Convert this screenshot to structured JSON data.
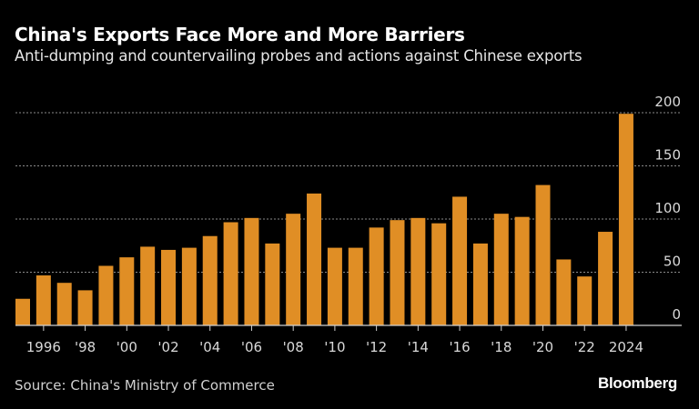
{
  "chart_data": {
    "type": "bar",
    "title": "China's Exports Face More and More Barriers",
    "subtitle": "Anti-dumping and countervailing probes and actions against Chinese exports",
    "xlabel": "",
    "ylabel": "",
    "categories": [
      1995,
      1996,
      1997,
      1998,
      1999,
      2000,
      2001,
      2002,
      2003,
      2004,
      2005,
      2006,
      2007,
      2008,
      2009,
      2010,
      2011,
      2012,
      2013,
      2014,
      2015,
      2016,
      2017,
      2018,
      2019,
      2020,
      2021,
      2022,
      2023,
      2024
    ],
    "values": [
      25,
      47,
      40,
      33,
      56,
      64,
      74,
      71,
      73,
      84,
      97,
      101,
      77,
      105,
      124,
      73,
      73,
      92,
      99,
      101,
      96,
      121,
      77,
      105,
      102,
      132,
      62,
      46,
      88,
      199
    ],
    "ylim": [
      0,
      200
    ],
    "y_ticks": [
      "0",
      "50",
      "100",
      "150",
      "200"
    ],
    "x_ticks": [
      {
        "year": 1996,
        "label": "1996"
      },
      {
        "year": 1998,
        "label": "'98"
      },
      {
        "year": 2000,
        "label": "'00"
      },
      {
        "year": 2002,
        "label": "'02"
      },
      {
        "year": 2004,
        "label": "'04"
      },
      {
        "year": 2006,
        "label": "'06"
      },
      {
        "year": 2008,
        "label": "'08"
      },
      {
        "year": 2010,
        "label": "'10"
      },
      {
        "year": 2012,
        "label": "'12"
      },
      {
        "year": 2014,
        "label": "'14"
      },
      {
        "year": 2016,
        "label": "'16"
      },
      {
        "year": 2018,
        "label": "'18"
      },
      {
        "year": 2020,
        "label": "'20"
      },
      {
        "year": 2022,
        "label": "'22"
      },
      {
        "year": 2024,
        "label": "2024"
      }
    ],
    "grid": true,
    "y_axis_position": "right",
    "bar_color": "#e08e25"
  },
  "footer": {
    "source": "Source: China's Ministry of Commerce",
    "logo": "Bloomberg"
  }
}
